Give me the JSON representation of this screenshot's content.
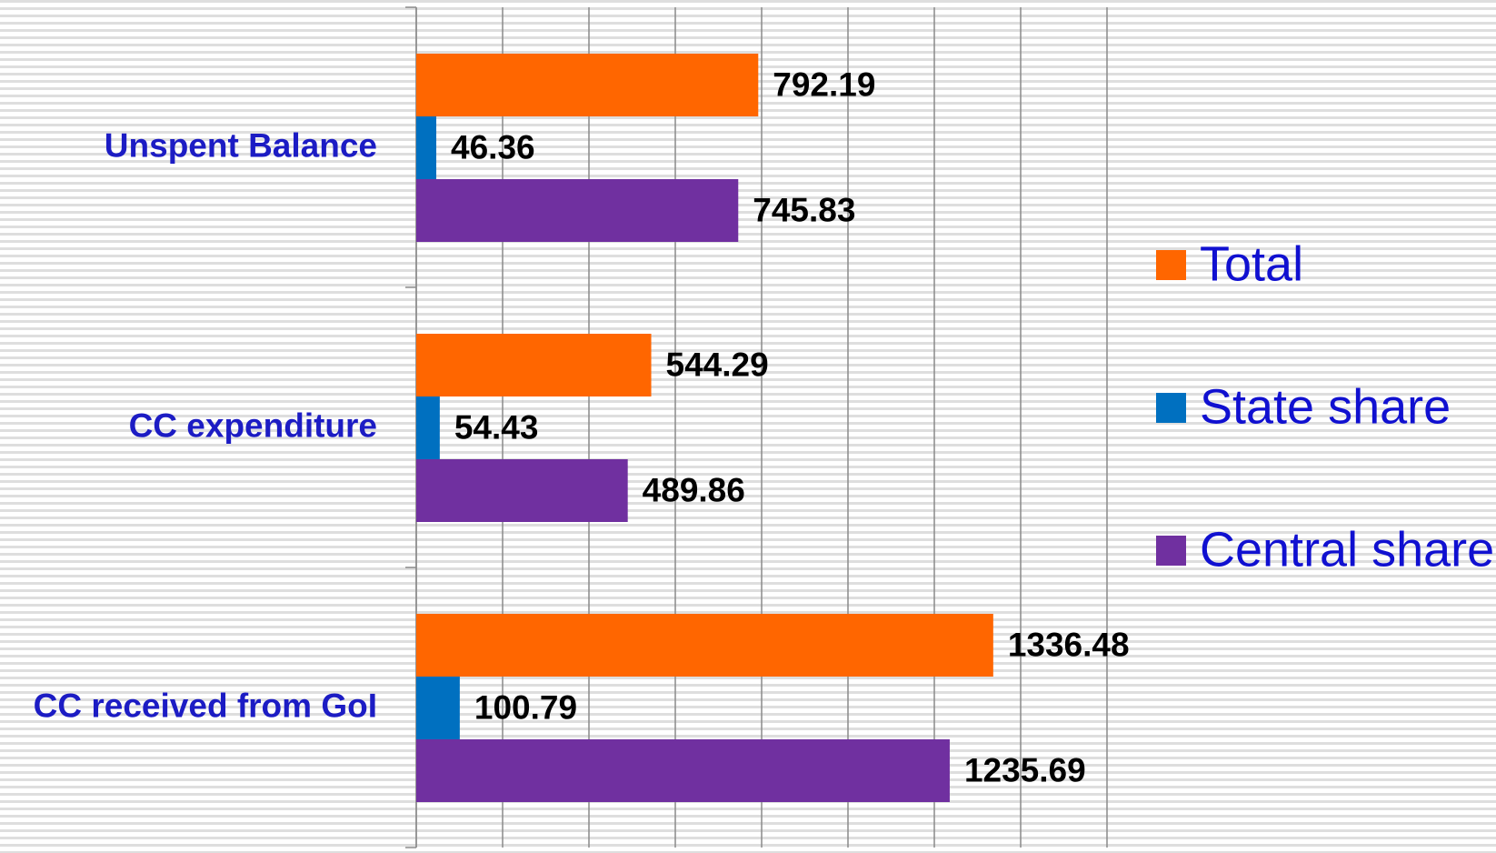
{
  "chart_data": {
    "type": "bar",
    "orientation": "horizontal",
    "categories": [
      "Unspent Balance",
      "CC expenditure",
      "CC received from GoI"
    ],
    "series": [
      {
        "name": "Total",
        "color": "#ff6600",
        "values": [
          792.19,
          544.29,
          1336.48
        ]
      },
      {
        "name": "State share",
        "color": "#0070c0",
        "values": [
          46.36,
          54.43,
          100.79
        ]
      },
      {
        "name": "Central share",
        "color": "#7030a0",
        "values": [
          745.83,
          489.86,
          1235.69
        ]
      }
    ],
    "xlim": [
      0,
      1600
    ],
    "xticks": [
      0,
      200,
      400,
      600,
      800,
      1000,
      1200,
      1400,
      1600
    ],
    "tick_labels": false,
    "grid": true,
    "legend": "right"
  }
}
